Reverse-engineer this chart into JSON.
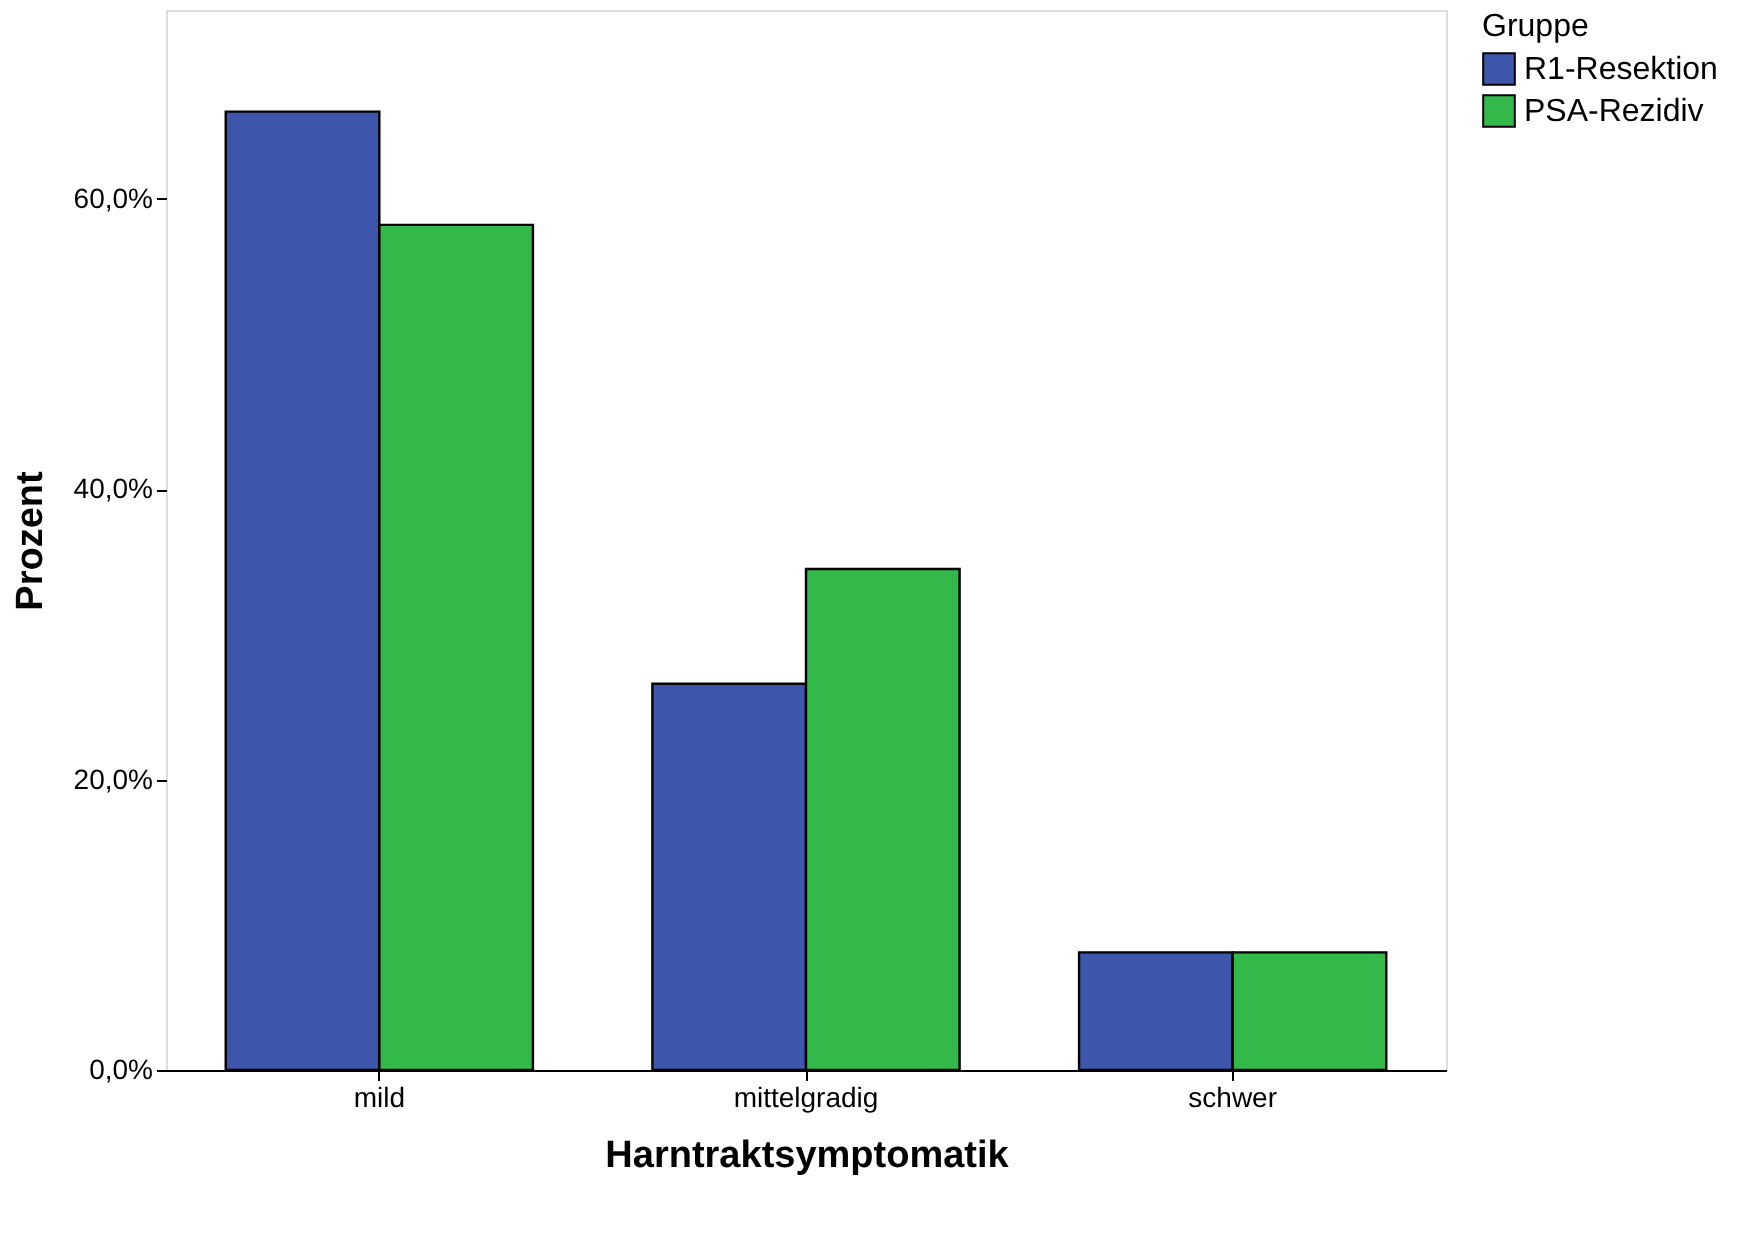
{
  "chart_data": {
    "type": "bar",
    "xlabel": "Harntraktsymptomatik",
    "ylabel": "Prozent",
    "legend_title": "Gruppe",
    "legend": "top right",
    "grid": false,
    "categories": [
      "mild",
      "mittelgradig",
      "schwer"
    ],
    "series": [
      {
        "name": "R1-Resektion",
        "color": "#3d56ab",
        "values": [
          66.0,
          26.6,
          8.1
        ]
      },
      {
        "name": "PSA-Rezidiv",
        "color": "#33b84a",
        "values": [
          58.2,
          34.5,
          8.1
        ]
      }
    ],
    "ylim": [
      0,
      73
    ],
    "yticks": [
      {
        "value": 0,
        "label": "0,0%"
      },
      {
        "value": 20,
        "label": "20,0%"
      },
      {
        "value": 40,
        "label": "40,0%"
      },
      {
        "value": 60,
        "label": "60,0%"
      }
    ]
  }
}
